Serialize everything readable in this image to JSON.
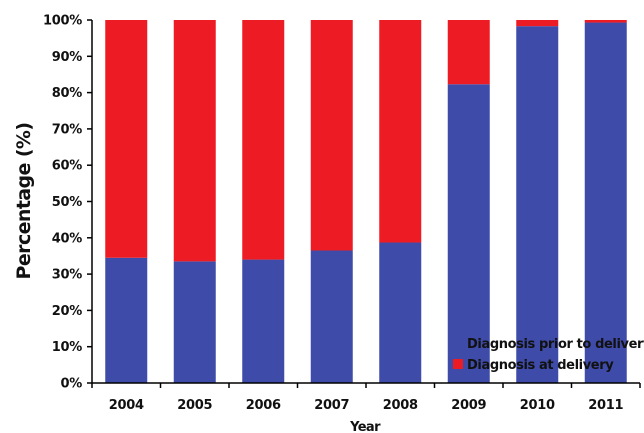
{
  "chart_data": {
    "type": "bar",
    "stacked": true,
    "categories": [
      "2004",
      "2005",
      "2006",
      "2007",
      "2008",
      "2009",
      "2010",
      "2011"
    ],
    "series": [
      {
        "name": "Diagnosis prior to delivery",
        "color": "#3F4BA8",
        "values": [
          34.5,
          33.5,
          34,
          36.5,
          38.7,
          82.3,
          98.3,
          99.3
        ]
      },
      {
        "name": "Diagnosis at delivery",
        "color": "#ED1C24",
        "values": [
          65.5,
          66.5,
          66,
          63.5,
          61.3,
          17.7,
          1.7,
          0.7
        ]
      }
    ],
    "xlabel": "Year",
    "ylabel": "Percentage (%)",
    "ylim": [
      0,
      100
    ],
    "yticks": [
      "0%",
      "10%",
      "20%",
      "30%",
      "40%",
      "50%",
      "60%",
      "70%",
      "80%",
      "90%",
      "100%"
    ],
    "grid": false,
    "legend_position": "bottom-right"
  }
}
